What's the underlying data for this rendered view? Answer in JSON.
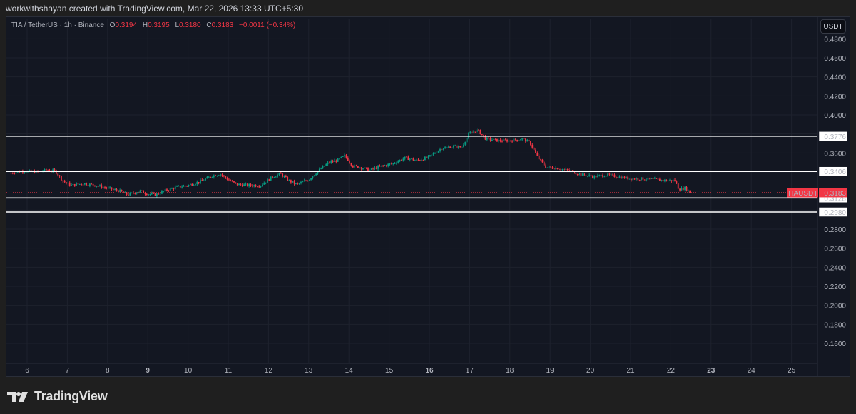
{
  "caption": "workwithshayan created with TradingView.com, Mar 22, 2026 13:33 UTC+5:30",
  "legend": {
    "symbol": "TIA / TetherUS · 1h · Binance",
    "open_label": "O",
    "open": "0.3194",
    "high_label": "H",
    "high": "0.3195",
    "low_label": "L",
    "low": "0.3180",
    "close_label": "C",
    "close": "0.3183",
    "change": "−0.0011 (−0.34%)"
  },
  "currency": "USDT",
  "brand": "TradingView",
  "colors": {
    "background": "#131722",
    "up": "#089981",
    "down": "#f23645",
    "grid": "#1e222d",
    "hline": "#ffffff",
    "text": "#b2b5be"
  },
  "chart_data": {
    "type": "candlestick",
    "title": "TIA / TetherUS · 1h · Binance",
    "xlabel": "",
    "ylabel": "USDT",
    "ylim": [
      0.15,
      0.49
    ],
    "y_ticks": [
      "0.4800",
      "0.4600",
      "0.4400",
      "0.4200",
      "0.4000",
      "0.3600",
      "0.2800",
      "0.2600",
      "0.2400",
      "0.2200",
      "0.2000",
      "0.1800",
      "0.1600"
    ],
    "x_ticks": [
      "6",
      "7",
      "8",
      "9",
      "10",
      "11",
      "12",
      "13",
      "14",
      "15",
      "16",
      "17",
      "18",
      "19",
      "20",
      "21",
      "22",
      "23",
      "24",
      "25"
    ],
    "bold_x_ticks": [
      "9",
      "16",
      "23"
    ],
    "horizontal_lines": [
      {
        "label": "0.3776",
        "value": 0.3776
      },
      {
        "label": "0.3406",
        "value": 0.3406
      },
      {
        "label": "0.3128",
        "value": 0.3128
      },
      {
        "label": "0.2980",
        "value": 0.298
      }
    ],
    "last_price": {
      "symbol": "TIAUSDT",
      "value": 0.3183,
      "label": "0.3183"
    },
    "path": [
      [
        5.6,
        0.339
      ],
      [
        5.9,
        0.341
      ],
      [
        6.2,
        0.34
      ],
      [
        6.5,
        0.342
      ],
      [
        6.7,
        0.341
      ],
      [
        6.9,
        0.33
      ],
      [
        7.1,
        0.326
      ],
      [
        7.4,
        0.328
      ],
      [
        7.7,
        0.326
      ],
      [
        8.0,
        0.323
      ],
      [
        8.3,
        0.32
      ],
      [
        8.5,
        0.316
      ],
      [
        8.8,
        0.32
      ],
      [
        9.0,
        0.317
      ],
      [
        9.2,
        0.316
      ],
      [
        9.4,
        0.32
      ],
      [
        9.7,
        0.324
      ],
      [
        10.0,
        0.326
      ],
      [
        10.3,
        0.33
      ],
      [
        10.6,
        0.336
      ],
      [
        10.8,
        0.338
      ],
      [
        11.0,
        0.332
      ],
      [
        11.2,
        0.327
      ],
      [
        11.5,
        0.326
      ],
      [
        11.8,
        0.326
      ],
      [
        12.1,
        0.335
      ],
      [
        12.3,
        0.338
      ],
      [
        12.5,
        0.331
      ],
      [
        12.7,
        0.327
      ],
      [
        13.0,
        0.332
      ],
      [
        13.2,
        0.34
      ],
      [
        13.5,
        0.35
      ],
      [
        13.7,
        0.352
      ],
      [
        13.9,
        0.357
      ],
      [
        14.1,
        0.346
      ],
      [
        14.3,
        0.345
      ],
      [
        14.5,
        0.342
      ],
      [
        14.8,
        0.346
      ],
      [
        15.1,
        0.349
      ],
      [
        15.4,
        0.355
      ],
      [
        15.7,
        0.352
      ],
      [
        16.0,
        0.356
      ],
      [
        16.3,
        0.365
      ],
      [
        16.6,
        0.367
      ],
      [
        16.8,
        0.366
      ],
      [
        17.0,
        0.381
      ],
      [
        17.2,
        0.384
      ],
      [
        17.4,
        0.375
      ],
      [
        17.7,
        0.373
      ],
      [
        18.0,
        0.373
      ],
      [
        18.3,
        0.375
      ],
      [
        18.5,
        0.371
      ],
      [
        18.7,
        0.355
      ],
      [
        18.9,
        0.345
      ],
      [
        19.2,
        0.344
      ],
      [
        19.5,
        0.341
      ],
      [
        19.8,
        0.337
      ],
      [
        20.1,
        0.335
      ],
      [
        20.4,
        0.337
      ],
      [
        20.7,
        0.335
      ],
      [
        21.0,
        0.333
      ],
      [
        21.3,
        0.333
      ],
      [
        21.6,
        0.332
      ],
      [
        21.9,
        0.331
      ],
      [
        22.1,
        0.331
      ],
      [
        22.2,
        0.322
      ],
      [
        22.35,
        0.323
      ],
      [
        22.5,
        0.318
      ]
    ]
  }
}
